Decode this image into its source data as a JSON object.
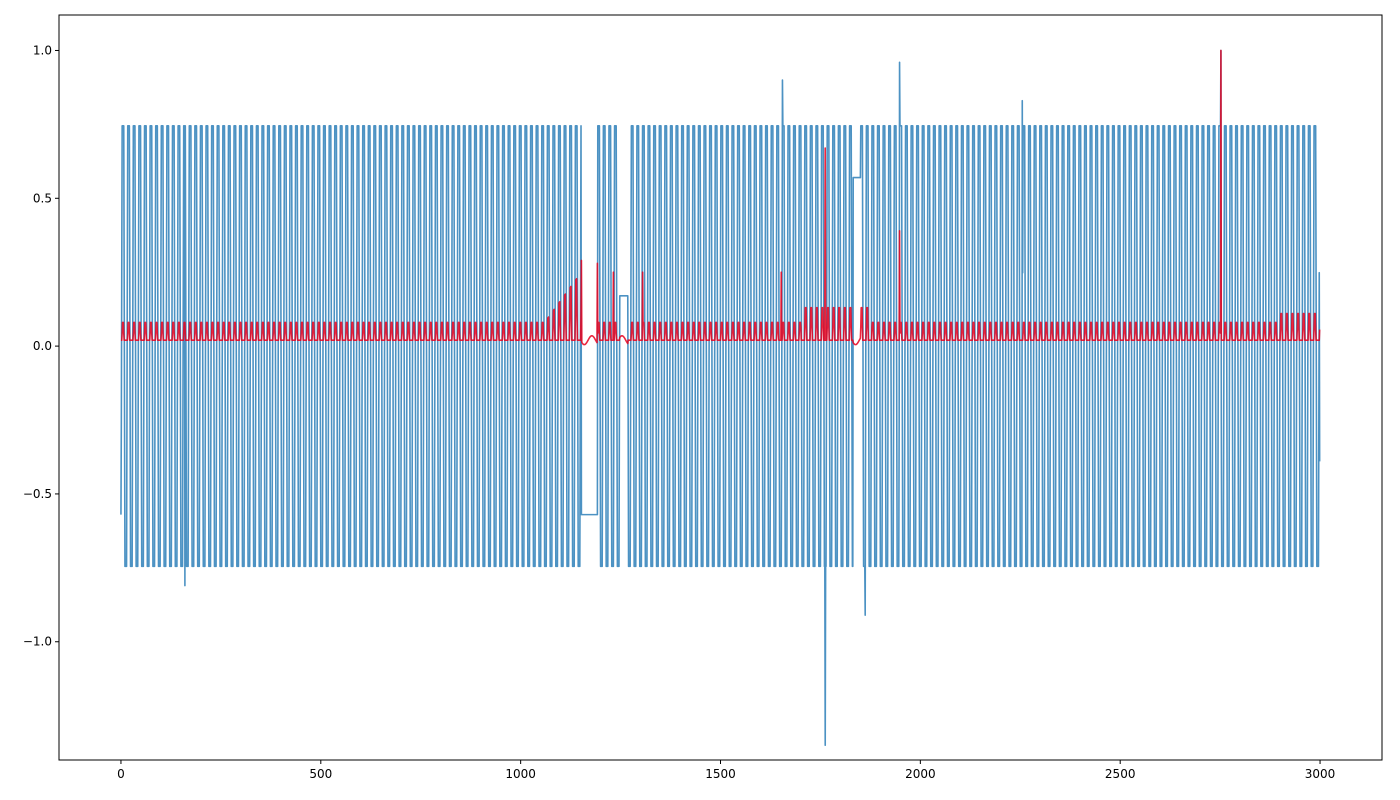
{
  "chart_data": {
    "type": "line",
    "title": "",
    "xlabel": "",
    "ylabel": "",
    "xlim": [
      -155,
      3155
    ],
    "ylim": [
      -1.4,
      1.12
    ],
    "xticks": [
      0,
      500,
      1000,
      1500,
      2000,
      2500,
      3000
    ],
    "xtick_labels": [
      "0",
      "500",
      "1000",
      "1500",
      "2000",
      "2500",
      "3000"
    ],
    "yticks": [
      1.0,
      0.5,
      0.0,
      -0.5,
      -1.0
    ],
    "ytick_labels": [
      "1.0",
      "0.5",
      "0.0",
      "−0.5",
      "−1.0"
    ],
    "grid": false,
    "n_points": 3000,
    "series": [
      {
        "color": "#1f77b4",
        "opacity": 0.8,
        "description_values": {
          "baseline_high": 0.745,
          "baseline_low": -0.745,
          "cycle_period": 14,
          "flat_segments": [
            {
              "x": [
                1152,
                1192
              ],
              "y": -0.57
            },
            {
              "x": [
                1248,
                1268
              ],
              "y": 0.17
            },
            {
              "x": [
                1832,
                1850
              ],
              "y": 0.57
            }
          ],
          "spikes": [
            {
              "x": 1655,
              "y": 0.9
            },
            {
              "x": 1948,
              "y": 0.96
            },
            {
              "x": 2255,
              "y": 0.83
            },
            {
              "x": 2752,
              "y": 1.0
            },
            {
              "x": 1762,
              "y": -1.35
            },
            {
              "x": 1862,
              "y": -0.91
            },
            {
              "x": 160,
              "y": -0.81
            }
          ]
        }
      },
      {
        "color": "#e8001c",
        "opacity": 0.85,
        "description_values": {
          "baseline": 0.02,
          "pulse_height": 0.06,
          "spikes": [
            {
              "x": 1152,
              "y": 0.29
            },
            {
              "x": 1192,
              "y": 0.28
            },
            {
              "x": 1232,
              "y": 0.25
            },
            {
              "x": 1305,
              "y": 0.25
            },
            {
              "x": 1652,
              "y": 0.25
            },
            {
              "x": 1762,
              "y": 0.67
            },
            {
              "x": 1948,
              "y": 0.39
            },
            {
              "x": 2752,
              "y": 1.0
            }
          ]
        }
      }
    ]
  }
}
